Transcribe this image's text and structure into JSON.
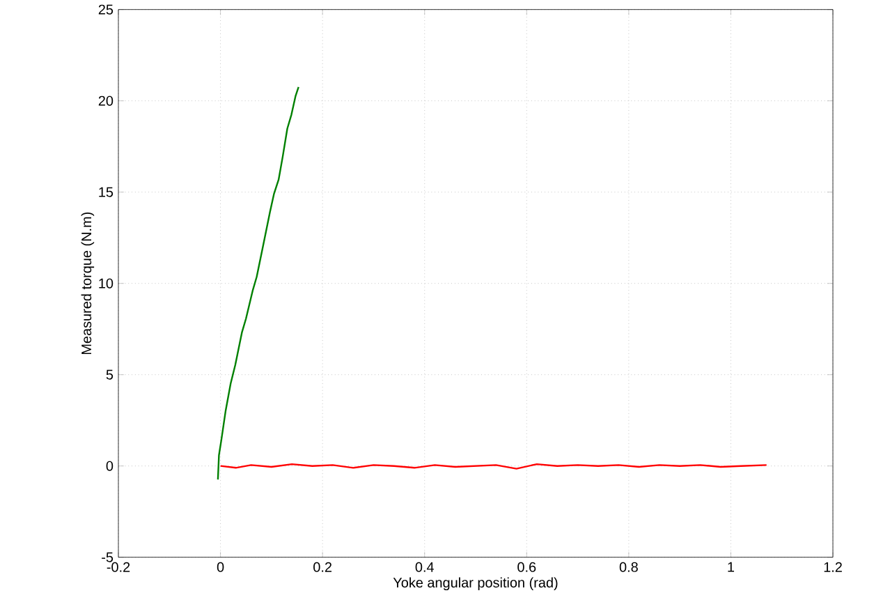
{
  "chart_data": {
    "type": "line",
    "xlabel": "Yoke angular position (rad)",
    "ylabel": "Measured torque (N.m)",
    "xlim": [
      -0.2,
      1.2
    ],
    "ylim": [
      -5,
      25
    ],
    "xticks": [
      -0.2,
      0,
      0.2,
      0.4,
      0.6,
      0.8,
      1,
      1.2
    ],
    "yticks": [
      -5,
      0,
      5,
      10,
      15,
      20,
      25
    ],
    "grid": true,
    "line_style": "solid",
    "marker": "none",
    "series": [
      {
        "color": "#008000",
        "x": [
          -0.005,
          -0.003,
          0.002,
          0.01,
          0.02,
          0.029,
          0.042,
          0.05,
          0.063,
          0.071,
          0.084,
          0.097,
          0.105,
          0.114,
          0.122,
          0.131,
          0.139,
          0.147,
          0.153
        ],
        "values": [
          -0.74,
          0.58,
          1.47,
          3.0,
          4.52,
          5.53,
          7.31,
          8.07,
          9.59,
          10.36,
          12.13,
          13.91,
          14.92,
          15.69,
          16.95,
          18.48,
          19.24,
          20.25,
          20.76
        ]
      },
      {
        "color": "#ff0000",
        "x": [
          0.0,
          0.03,
          0.06,
          0.1,
          0.14,
          0.18,
          0.22,
          0.26,
          0.3,
          0.34,
          0.38,
          0.42,
          0.46,
          0.5,
          0.54,
          0.58,
          0.62,
          0.66,
          0.7,
          0.74,
          0.78,
          0.82,
          0.86,
          0.9,
          0.94,
          0.98,
          1.02,
          1.07
        ],
        "values": [
          0.0,
          -0.1,
          0.05,
          -0.05,
          0.1,
          0.0,
          0.05,
          -0.1,
          0.05,
          0.0,
          -0.1,
          0.05,
          -0.05,
          0.0,
          0.05,
          -0.15,
          0.1,
          0.0,
          0.05,
          0.0,
          0.05,
          -0.05,
          0.05,
          0.0,
          0.05,
          -0.05,
          0.0,
          0.05
        ]
      }
    ]
  }
}
